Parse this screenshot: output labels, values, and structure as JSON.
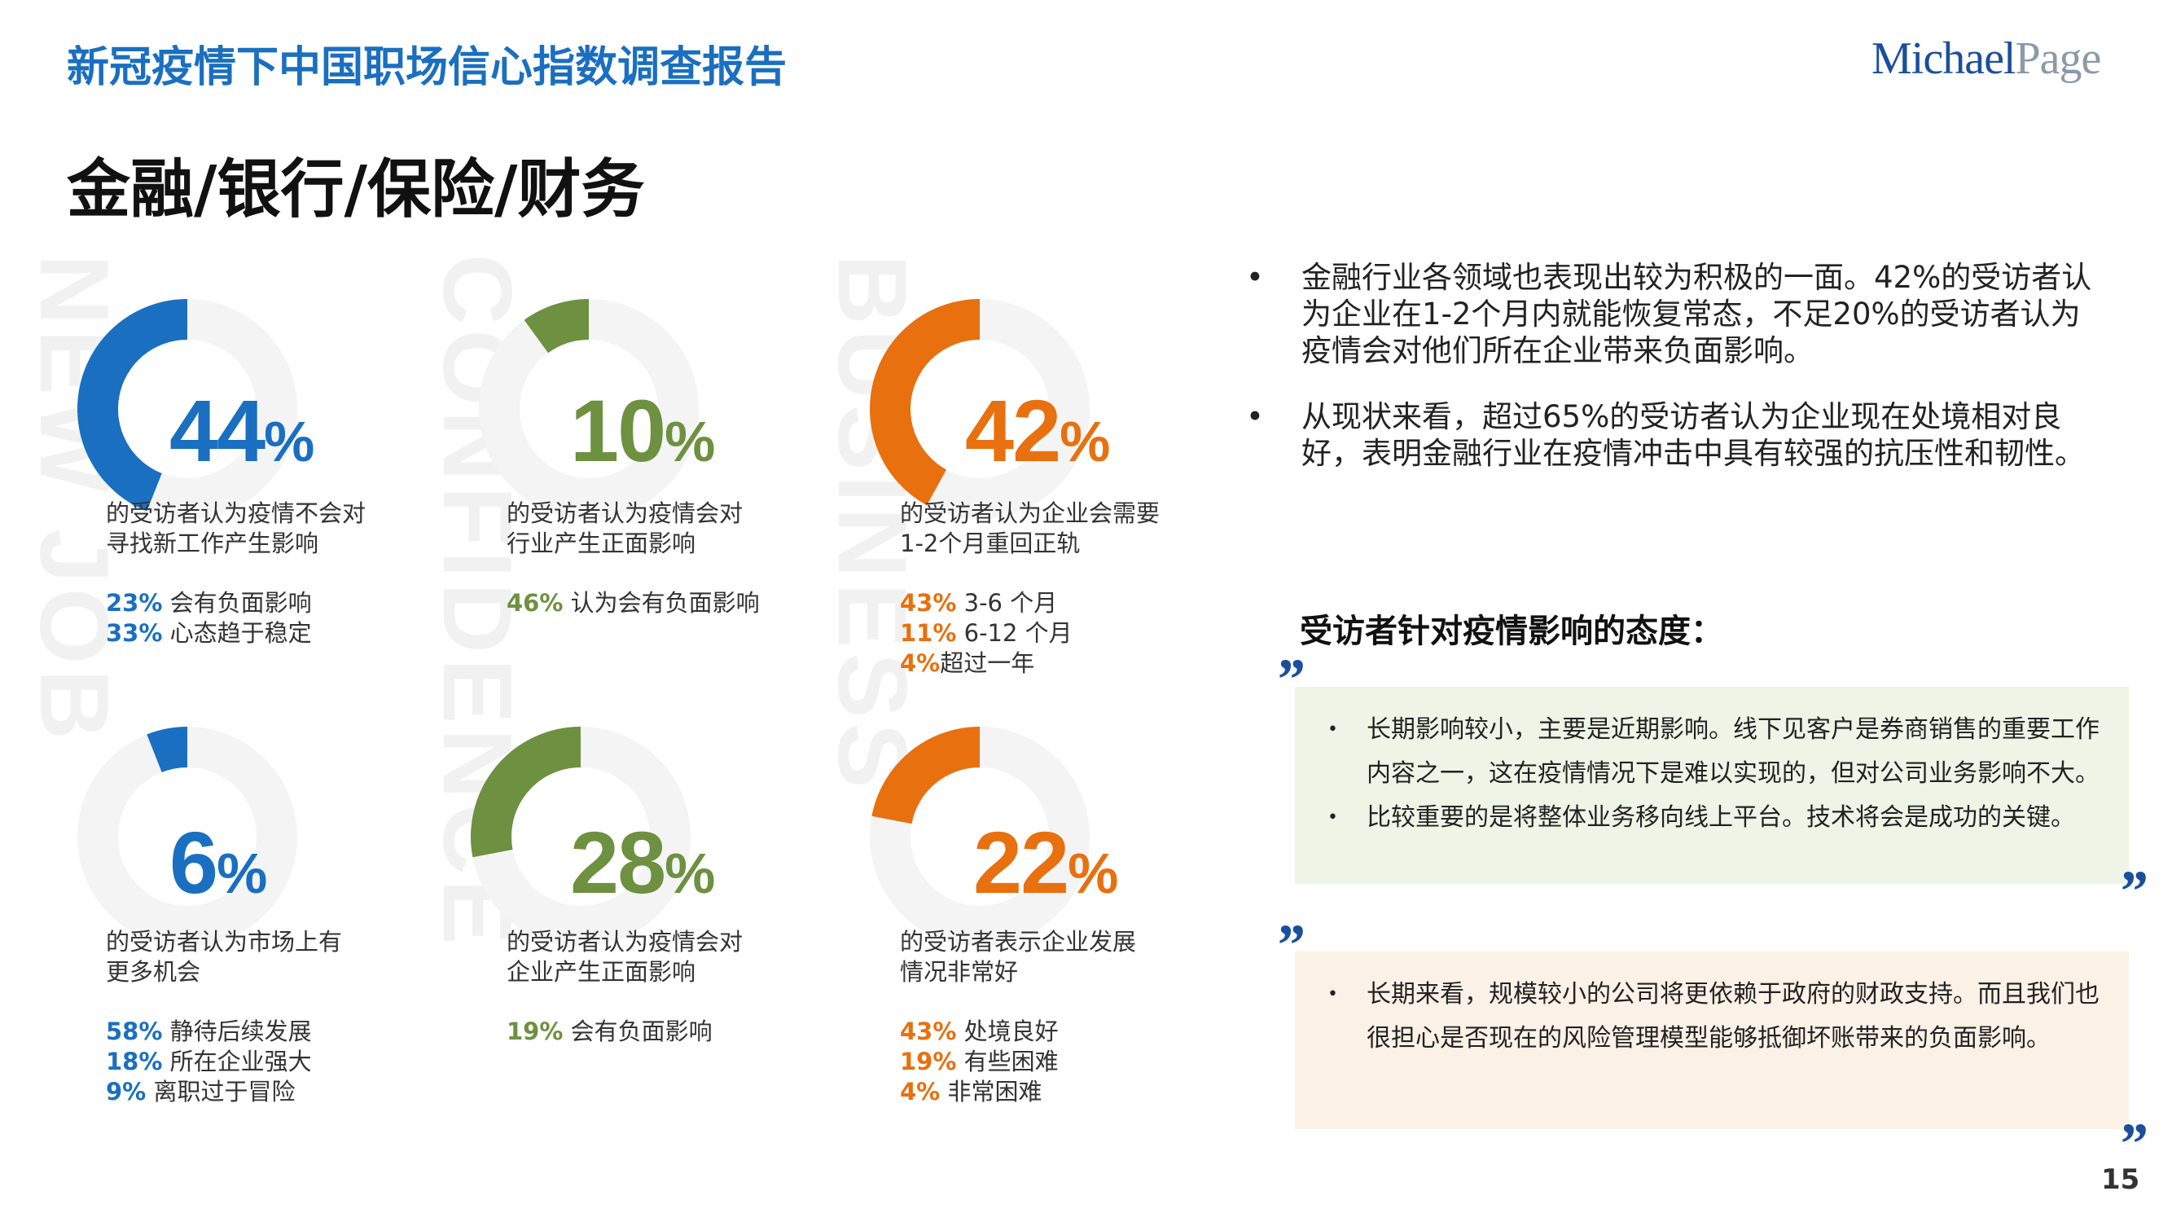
{
  "header": {
    "report_title": "新冠疫情下中国职场信心指数调查报告",
    "logo_michael": "Michael",
    "logo_page": "Page"
  },
  "section_title": "金融/银行/保险/财务",
  "watermarks": [
    "NEW JOB",
    "CONFIDENCE",
    "BUSINESS"
  ],
  "colors": {
    "blue": "#1a6fc0",
    "green": "#6d9140",
    "orange": "#e8700f",
    "track": "#f4f4f4"
  },
  "stats": [
    {
      "value": 44,
      "number": "44",
      "sign": "%",
      "color": "blue",
      "desc": [
        "的受访者认为疫情不会对",
        "寻找新工作产生影响"
      ],
      "details": [
        {
          "num": "23%",
          "text": " 会有负面影响"
        },
        {
          "num": "33%",
          "text": " 心态趋于稳定"
        }
      ]
    },
    {
      "value": 10,
      "number": "10",
      "sign": "%",
      "color": "green",
      "desc": [
        "的受访者认为疫情会对",
        "行业产生正面影响"
      ],
      "details": [
        {
          "num": "46%",
          "text": " 认为会有负面影响"
        }
      ]
    },
    {
      "value": 42,
      "number": "42",
      "sign": "%",
      "color": "orange",
      "desc": [
        "的受访者认为企业会需要",
        "1-2个月重回正轨"
      ],
      "details": [
        {
          "num": "43%",
          "text": " 3-6 个月"
        },
        {
          "num": "11%",
          "text": " 6-12 个月"
        },
        {
          "num": "4%",
          "text": "超过一年"
        }
      ]
    },
    {
      "value": 6,
      "number": "6",
      "sign": "%",
      "color": "blue",
      "desc": [
        "的受访者认为市场上有",
        "更多机会"
      ],
      "details": [
        {
          "num": "58%",
          "text": " 静待后续发展"
        },
        {
          "num": "18%",
          "text": " 所在企业强大"
        },
        {
          "num": "9%",
          "text": " 离职过于冒险"
        }
      ]
    },
    {
      "value": 28,
      "number": "28",
      "sign": "%",
      "color": "green",
      "desc": [
        "的受访者认为疫情会对",
        "企业产生正面影响"
      ],
      "details": [
        {
          "num": "19%",
          "text": " 会有负面影响"
        }
      ]
    },
    {
      "value": 22,
      "number": "22",
      "sign": "%",
      "color": "orange",
      "desc": [
        "的受访者表示企业发展",
        "情况非常好"
      ],
      "details": [
        {
          "num": "43%",
          "text": " 处境良好"
        },
        {
          "num": "19%",
          "text": " 有些困难"
        },
        {
          "num": "4%",
          "text": " 非常困难"
        }
      ]
    }
  ],
  "bullets": [
    "金融行业各领域也表现出较为积极的一面。42%的受访者认为企业在1-2个月内就能恢复常态，不足20%的受访者认为疫情会对他们所在企业带来负面影响。",
    "从现状来看，超过65%的受访者认为企业现在处境相对良好，表明金融行业在疫情冲击中具有较强的抗压性和韧性。"
  ],
  "attitude_heading": "受访者针对疫情影响的态度：",
  "quote_mark": "”",
  "quote_box_1": [
    "长期影响较小，主要是近期影响。线下见客户是券商销售的重要工作内容之一，这在疫情情况下是难以实现的，但对公司业务影响不大。",
    "比较重要的是将整体业务移向线上平台。技术将会是成功的关键。"
  ],
  "quote_box_2": [
    "长期来看，规模较小的公司将更依赖于政府的财政支持。而且我们也很担心是否现在的风险管理模型能够抵御坏账带来的负面影响。"
  ],
  "bullet_char": "•",
  "page_number": "15"
}
